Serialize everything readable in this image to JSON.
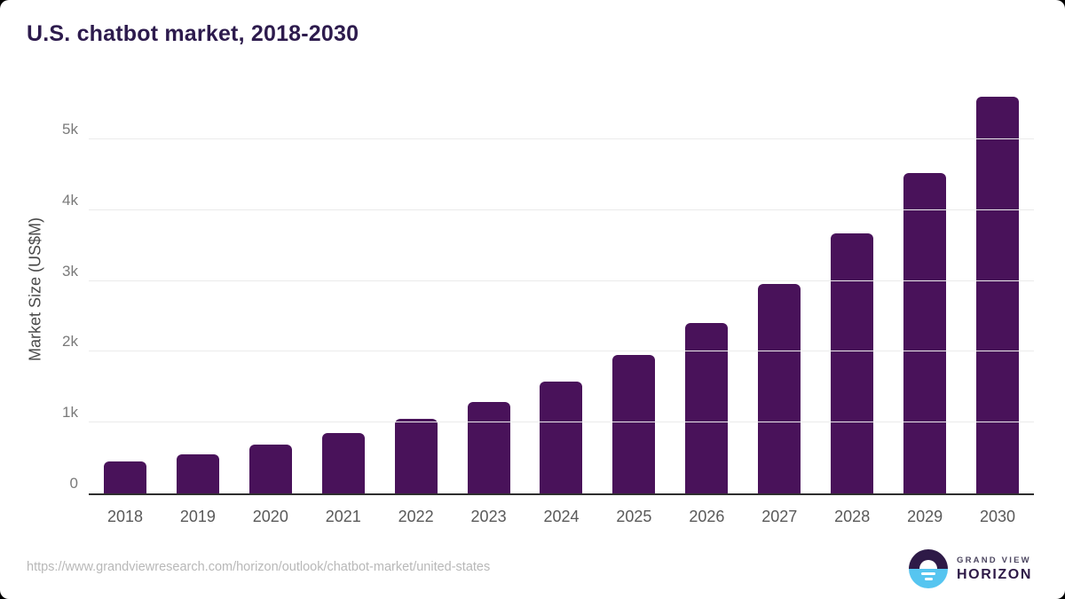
{
  "title": "U.S. chatbot market, 2018-2030",
  "chart_data": {
    "type": "bar",
    "title": "U.S. chatbot market, 2018-2030",
    "categories": [
      "2018",
      "2019",
      "2020",
      "2021",
      "2022",
      "2023",
      "2024",
      "2025",
      "2026",
      "2027",
      "2028",
      "2029",
      "2030"
    ],
    "values": [
      450,
      550,
      690,
      850,
      1050,
      1290,
      1580,
      1950,
      2400,
      2960,
      3670,
      4520,
      5600
    ],
    "xlabel": "",
    "ylabel": "Market Size (US$M)",
    "ylim": [
      0,
      5800
    ],
    "yticks": [
      {
        "value": 0,
        "label": "0"
      },
      {
        "value": 1000,
        "label": "1k"
      },
      {
        "value": 2000,
        "label": "2k"
      },
      {
        "value": 3000,
        "label": "3k"
      },
      {
        "value": 4000,
        "label": "4k"
      },
      {
        "value": 5000,
        "label": "5k"
      }
    ],
    "grid": "horizontal",
    "legend": false,
    "bar_color": "#49125a"
  },
  "footer": {
    "source_url": "https://www.grandviewresearch.com/horizon/outlook/chatbot-market/united-states"
  },
  "logo": {
    "top_text": "GRAND VIEW",
    "bottom_text": "HORIZON"
  },
  "colors": {
    "bar": "#49125a",
    "title_text": "#2d1b4d",
    "logo_purple": "#2e1a47",
    "logo_blue": "#56c5f0",
    "gridline": "#ebebeb",
    "axis_line": "#2f2f2f",
    "y_tick_text": "#7a7a7a",
    "x_tick_text": "#595959",
    "url_text": "#b8b8b8"
  }
}
